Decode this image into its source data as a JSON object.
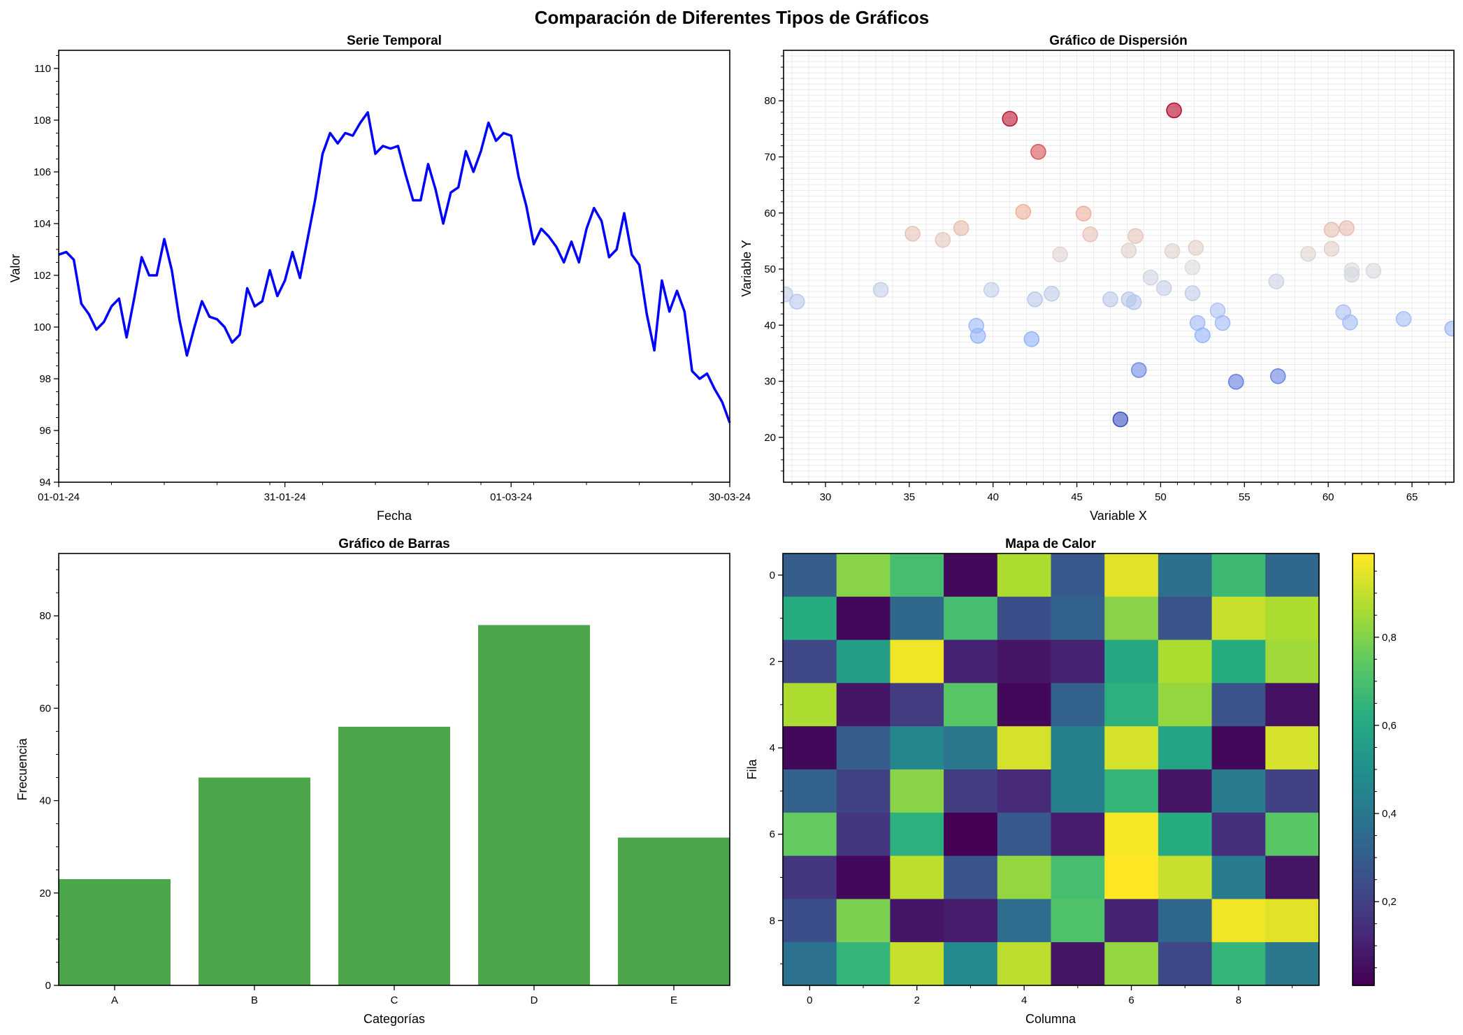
{
  "figure": {
    "suptitle": "Comparación de Diferentes Tipos de Gráficos"
  },
  "chart_data": [
    {
      "type": "line",
      "title": "Serie Temporal",
      "xlabel": "Fecha",
      "ylabel": "Valor",
      "color": "#0000ff",
      "x_range": [
        "01-01-24",
        "30-03-24"
      ],
      "xticks": [
        "01-01-24",
        "31-01-24",
        "01-03-24",
        "30-03-24"
      ],
      "ylim": [
        94,
        110.7
      ],
      "yticks": [
        94,
        96,
        98,
        100,
        102,
        104,
        106,
        108,
        110
      ],
      "grid": false,
      "x": [
        "01-01-24",
        "02-01-24",
        "03-01-24",
        "04-01-24",
        "05-01-24",
        "06-01-24",
        "07-01-24",
        "08-01-24",
        "09-01-24",
        "10-01-24",
        "11-01-24",
        "12-01-24",
        "13-01-24",
        "14-01-24",
        "15-01-24",
        "16-01-24",
        "17-01-24",
        "18-01-24",
        "19-01-24",
        "20-01-24",
        "21-01-24",
        "22-01-24",
        "23-01-24",
        "24-01-24",
        "25-01-24",
        "26-01-24",
        "27-01-24",
        "28-01-24",
        "29-01-24",
        "30-01-24",
        "31-01-24",
        "01-02-24",
        "02-02-24",
        "03-02-24",
        "04-02-24",
        "05-02-24",
        "06-02-24",
        "07-02-24",
        "08-02-24",
        "09-02-24",
        "10-02-24",
        "11-02-24",
        "12-02-24",
        "13-02-24",
        "14-02-24",
        "15-02-24",
        "16-02-24",
        "17-02-24",
        "18-02-24",
        "19-02-24",
        "20-02-24",
        "21-02-24",
        "22-02-24",
        "23-02-24",
        "24-02-24",
        "25-02-24",
        "26-02-24",
        "27-02-24",
        "28-02-24",
        "29-02-24",
        "01-03-24",
        "02-03-24",
        "03-03-24",
        "04-03-24",
        "05-03-24",
        "06-03-24",
        "07-03-24",
        "08-03-24",
        "09-03-24",
        "10-03-24",
        "11-03-24",
        "12-03-24",
        "13-03-24",
        "14-03-24",
        "15-03-24",
        "16-03-24",
        "17-03-24",
        "18-03-24",
        "19-03-24",
        "20-03-24",
        "21-03-24",
        "22-03-24",
        "23-03-24",
        "24-03-24",
        "25-03-24",
        "26-03-24",
        "27-03-24",
        "28-03-24",
        "29-03-24",
        "30-03-24"
      ],
      "y": [
        102.8,
        102.9,
        102.6,
        100.9,
        100.5,
        99.9,
        100.2,
        100.8,
        101.1,
        99.6,
        101.1,
        102.7,
        102.0,
        102.0,
        103.4,
        102.2,
        100.3,
        98.9,
        100.0,
        101.0,
        100.4,
        100.3,
        100.0,
        99.4,
        99.7,
        101.5,
        100.8,
        101.0,
        102.2,
        101.2,
        101.8,
        102.9,
        101.9,
        103.4,
        104.9,
        106.7,
        107.5,
        107.1,
        107.5,
        107.4,
        107.9,
        108.3,
        106.7,
        107.0,
        106.9,
        107.0,
        105.9,
        104.9,
        104.9,
        106.3,
        105.3,
        104.0,
        105.2,
        105.4,
        106.8,
        106.0,
        106.8,
        107.9,
        107.2,
        107.5,
        107.4,
        105.8,
        104.7,
        103.2,
        103.8,
        103.5,
        103.1,
        102.5,
        103.3,
        102.5,
        103.8,
        104.6,
        104.1,
        102.7,
        103.0,
        104.4,
        102.8,
        102.4,
        100.5,
        99.1,
        101.8,
        100.6,
        101.4,
        100.6,
        98.3,
        98.0,
        98.2,
        97.6,
        97.1,
        96.3
      ]
    },
    {
      "type": "scatter",
      "title": "Gráfico de Dispersión",
      "xlabel": "Variable X",
      "ylabel": "Variable Y",
      "colormap": "coolwarm",
      "xlim": [
        27.5,
        67.5
      ],
      "ylim": [
        12,
        89
      ],
      "xticks": [
        30,
        35,
        40,
        45,
        50,
        55,
        60,
        65
      ],
      "yticks": [
        20,
        30,
        40,
        50,
        60,
        70,
        80
      ],
      "grid": true,
      "points": [
        {
          "x": 27.6,
          "y": 45.5
        },
        {
          "x": 28.3,
          "y": 44.2
        },
        {
          "x": 33.3,
          "y": 46.3
        },
        {
          "x": 35.2,
          "y": 56.3
        },
        {
          "x": 37.0,
          "y": 55.2
        },
        {
          "x": 38.1,
          "y": 57.3
        },
        {
          "x": 39.0,
          "y": 39.9
        },
        {
          "x": 39.1,
          "y": 38.1
        },
        {
          "x": 39.9,
          "y": 46.3
        },
        {
          "x": 41.0,
          "y": 76.8
        },
        {
          "x": 41.8,
          "y": 60.2
        },
        {
          "x": 42.3,
          "y": 37.5
        },
        {
          "x": 42.5,
          "y": 44.6
        },
        {
          "x": 42.7,
          "y": 70.9
        },
        {
          "x": 43.5,
          "y": 45.6
        },
        {
          "x": 44.0,
          "y": 52.6
        },
        {
          "x": 45.4,
          "y": 59.9
        },
        {
          "x": 45.8,
          "y": 56.2
        },
        {
          "x": 47.0,
          "y": 44.6
        },
        {
          "x": 47.6,
          "y": 23.2
        },
        {
          "x": 48.1,
          "y": 44.6
        },
        {
          "x": 48.1,
          "y": 53.3
        },
        {
          "x": 48.4,
          "y": 44.1
        },
        {
          "x": 48.5,
          "y": 55.9
        },
        {
          "x": 48.7,
          "y": 32.0
        },
        {
          "x": 49.4,
          "y": 48.5
        },
        {
          "x": 50.2,
          "y": 46.6
        },
        {
          "x": 50.7,
          "y": 53.2
        },
        {
          "x": 50.8,
          "y": 78.3
        },
        {
          "x": 51.9,
          "y": 50.3
        },
        {
          "x": 51.9,
          "y": 45.7
        },
        {
          "x": 52.1,
          "y": 53.8
        },
        {
          "x": 52.2,
          "y": 40.4
        },
        {
          "x": 52.5,
          "y": 38.2
        },
        {
          "x": 53.4,
          "y": 42.6
        },
        {
          "x": 53.7,
          "y": 40.4
        },
        {
          "x": 54.5,
          "y": 29.9
        },
        {
          "x": 56.9,
          "y": 47.8
        },
        {
          "x": 57.0,
          "y": 30.9
        },
        {
          "x": 58.8,
          "y": 52.7
        },
        {
          "x": 60.2,
          "y": 53.6
        },
        {
          "x": 60.2,
          "y": 57.0
        },
        {
          "x": 60.9,
          "y": 42.3
        },
        {
          "x": 61.1,
          "y": 57.3
        },
        {
          "x": 61.3,
          "y": 40.5
        },
        {
          "x": 61.4,
          "y": 49.0
        },
        {
          "x": 61.4,
          "y": 49.8
        },
        {
          "x": 62.7,
          "y": 49.7
        },
        {
          "x": 64.5,
          "y": 41.1
        },
        {
          "x": 67.4,
          "y": 39.4
        }
      ]
    },
    {
      "type": "bar",
      "title": "Gráfico de Barras",
      "xlabel": "Categorías",
      "ylabel": "Frecuencia",
      "color": "#4ba64b",
      "categories": [
        "A",
        "B",
        "C",
        "D",
        "E"
      ],
      "values": [
        23,
        45,
        56,
        78,
        32
      ],
      "ylim": [
        0,
        93.5
      ],
      "yticks": [
        0,
        20,
        40,
        60,
        80
      ],
      "grid": false
    },
    {
      "type": "heatmap",
      "title": "Mapa de Calor",
      "xlabel": "Columna",
      "ylabel": "Fila",
      "colormap": "viridis",
      "xticks": [
        0,
        2,
        4,
        6,
        8
      ],
      "yticks": [
        0,
        2,
        4,
        6,
        8
      ],
      "colorbar_range": [
        0.01,
        0.99
      ],
      "colorbar_ticks": [
        "0,2",
        "0,4",
        "0,6",
        "0,8"
      ],
      "colorbar_tick_values": [
        0.2,
        0.4,
        0.6,
        0.8
      ],
      "values": [
        [
          0.3,
          0.82,
          0.7,
          0.02,
          0.88,
          0.28,
          0.96,
          0.37,
          0.68,
          0.34
        ],
        [
          0.62,
          0.02,
          0.34,
          0.7,
          0.24,
          0.32,
          0.82,
          0.26,
          0.92,
          0.88
        ],
        [
          0.22,
          0.56,
          0.98,
          0.1,
          0.06,
          0.1,
          0.6,
          0.88,
          0.62,
          0.86
        ],
        [
          0.88,
          0.06,
          0.18,
          0.74,
          0.02,
          0.32,
          0.64,
          0.84,
          0.26,
          0.05
        ],
        [
          0.02,
          0.3,
          0.46,
          0.4,
          0.94,
          0.44,
          0.94,
          0.58,
          0.02,
          0.94
        ],
        [
          0.32,
          0.2,
          0.82,
          0.18,
          0.12,
          0.44,
          0.66,
          0.06,
          0.42,
          0.2
        ],
        [
          0.76,
          0.16,
          0.64,
          0.0,
          0.28,
          0.08,
          0.99,
          0.62,
          0.14,
          0.74
        ],
        [
          0.16,
          0.02,
          0.9,
          0.26,
          0.84,
          0.7,
          1.0,
          0.92,
          0.42,
          0.06
        ],
        [
          0.24,
          0.8,
          0.06,
          0.08,
          0.36,
          0.72,
          0.1,
          0.34,
          0.98,
          0.96
        ],
        [
          0.38,
          0.66,
          0.92,
          0.48,
          0.9,
          0.06,
          0.84,
          0.22,
          0.66,
          0.4
        ]
      ]
    }
  ]
}
